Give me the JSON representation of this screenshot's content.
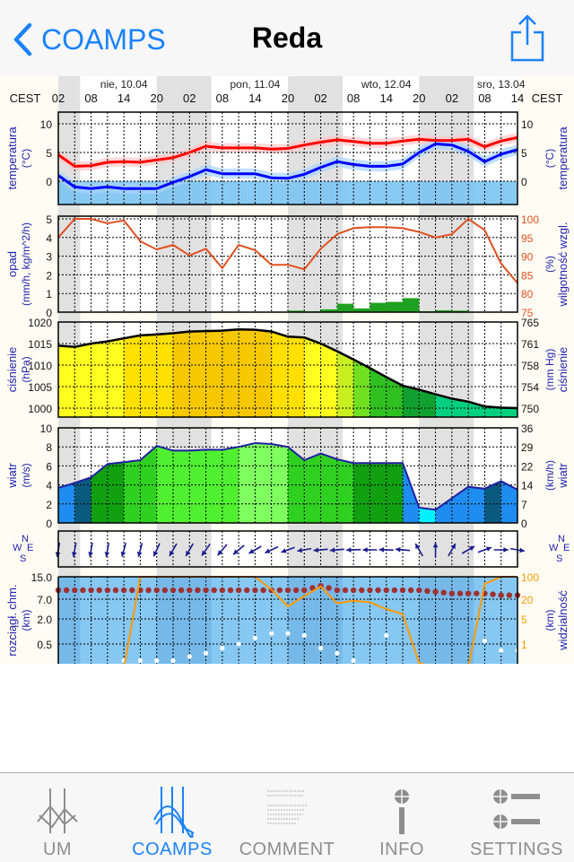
{
  "navbar": {
    "back_label": "COAMPS",
    "title": "Reda",
    "share_icon": "share-icon"
  },
  "tabs": [
    {
      "label": "UM",
      "icon": "um-chart-icon",
      "active": false
    },
    {
      "label": "COAMPS",
      "icon": "coamps-chart-icon",
      "active": true
    },
    {
      "label": "COMMENT",
      "icon": "comment-text-icon",
      "active": false
    },
    {
      "label": "INFO",
      "icon": "info-icon",
      "active": false
    },
    {
      "label": "SETTINGS",
      "icon": "settings-icon",
      "active": false
    }
  ],
  "colors": {
    "accent": "#1a82fb",
    "inactive": "#8e8e8e",
    "axis_label": "#2020b0",
    "rh_axis": "#e05020",
    "vis_axis": "#ff9900"
  },
  "meteogram": {
    "timezone_label": "CEST",
    "dates": [
      {
        "label": "nie, 10.04",
        "time": "10.04 14:00"
      },
      {
        "label": "pon, 11.04",
        "time": "11.04 14:00"
      },
      {
        "label": "wto, 12.04",
        "time": "12.04 14:00"
      },
      {
        "label": "sro, 13.04",
        "time": "13.04 11:00"
      }
    ],
    "hour_labels": [
      "02",
      "08",
      "14",
      "20",
      "02",
      "08",
      "14",
      "20",
      "02",
      "08",
      "14",
      "20",
      "02",
      "08",
      "14"
    ],
    "night_periods": [
      [
        "10.04 02:00",
        "10.04 06:00"
      ],
      [
        "10.04 20:00",
        "11.04 06:00"
      ],
      [
        "11.04 20:00",
        "12.04 06:00"
      ],
      [
        "12.04 20:00",
        "13.04 06:00"
      ]
    ],
    "panels": {
      "temperature": {
        "left_label": "temperatura",
        "left_unit": "(°C)",
        "right_label": "temperatura",
        "right_unit": "(°C)",
        "ticks": [
          "10",
          "5",
          "0"
        ]
      },
      "precip": {
        "left_label": "opad",
        "left_unit": "(mm/h, kg/m^2/h)",
        "right_label": "wilgotność wzgl.",
        "right_unit": "(%)",
        "ticks_left": [
          "5",
          "4",
          "3",
          "2",
          "1",
          "0"
        ],
        "ticks_right": [
          "100",
          "95",
          "90",
          "85",
          "80",
          "75"
        ]
      },
      "pressure": {
        "left_label": "ciśnienie",
        "left_unit": "(hPa)",
        "right_label": "ciśnienie",
        "right_unit": "(mm Hg)",
        "ticks_left": [
          "1020",
          "1015",
          "1010",
          "1005",
          "1000"
        ],
        "ticks_right": [
          "765",
          "761",
          "758",
          "754",
          "750"
        ]
      },
      "wind": {
        "left_label": "wiatr",
        "left_unit": "(m/s)",
        "right_label": "wiatr",
        "right_unit": "(km/h)",
        "ticks_left": [
          "10",
          "8",
          "6",
          "4",
          "2",
          "0"
        ],
        "ticks_right": [
          "36",
          "29",
          "22",
          "14",
          "7",
          "0"
        ]
      },
      "direction": {
        "compass": [
          "N",
          "W",
          "E",
          "S"
        ]
      },
      "clouds": {
        "left_label": "rozciągł. chm.",
        "left_unit": "(km)",
        "right_label": "widzialność",
        "right_unit": "(km)",
        "ticks_left": [
          "15.0",
          "7.0",
          "2.0",
          "0.5"
        ],
        "ticks_right": [
          "100",
          "20",
          "5",
          "1"
        ]
      }
    }
  },
  "chart_data": {
    "type": "line",
    "times": [
      "10.04 02:00",
      "10.04 05:00",
      "10.04 08:00",
      "10.04 11:00",
      "10.04 14:00",
      "10.04 17:00",
      "10.04 20:00",
      "10.04 23:00",
      "11.04 02:00",
      "11.04 05:00",
      "11.04 08:00",
      "11.04 11:00",
      "11.04 14:00",
      "11.04 17:00",
      "11.04 20:00",
      "11.04 23:00",
      "12.04 02:00",
      "12.04 05:00",
      "12.04 08:00",
      "12.04 11:00",
      "12.04 14:00",
      "12.04 17:00",
      "12.04 20:00",
      "12.04 23:00",
      "13.04 02:00",
      "13.04 05:00",
      "13.04 08:00",
      "13.04 11:00",
      "13.04 14:00"
    ],
    "series": [
      {
        "key": "temperature_red",
        "unit": "°C",
        "color": "#ff0000",
        "values": [
          4.6,
          2.6,
          2.7,
          3.3,
          3.4,
          3.3,
          3.7,
          4.1,
          5.0,
          6.1,
          5.8,
          5.8,
          5.8,
          5.6,
          5.7,
          6.3,
          6.8,
          7.2,
          6.9,
          6.6,
          6.6,
          7.0,
          7.3,
          7.1,
          7.1,
          7.3,
          6.0,
          7.0,
          7.6
        ]
      },
      {
        "key": "temperature_blue",
        "unit": "°C",
        "color": "#0000ff",
        "values": [
          1.0,
          -1.0,
          -1.3,
          -1.0,
          -1.3,
          -1.3,
          -1.3,
          -0.2,
          0.8,
          2.0,
          1.3,
          1.3,
          1.3,
          0.6,
          0.5,
          1.2,
          2.4,
          3.4,
          2.9,
          2.6,
          2.6,
          3.0,
          5.0,
          6.5,
          6.3,
          5.2,
          3.4,
          4.7,
          5.5
        ]
      },
      {
        "key": "precipitation",
        "unit": "mm/h",
        "color": "#20a020",
        "values": [
          0,
          0,
          0,
          0,
          0,
          0,
          0,
          0,
          0,
          0,
          0,
          0,
          0,
          0,
          0.08,
          0.05,
          0.15,
          0.45,
          0.2,
          0.5,
          0.55,
          0.75,
          0.05,
          0.1,
          0.08,
          0,
          0,
          0,
          0
        ]
      },
      {
        "key": "relative_humidity",
        "unit": "%",
        "color": "#e05020",
        "values": [
          95,
          100,
          100,
          98.8,
          99.6,
          94,
          91.8,
          93,
          90.2,
          92,
          86.8,
          93,
          91.6,
          87.7,
          87.7,
          86.5,
          92,
          95.9,
          97.5,
          97.8,
          97.8,
          97.5,
          96.5,
          95,
          95.9,
          100,
          97,
          88,
          82.8
        ]
      },
      {
        "key": "pressure",
        "unit": "hPa",
        "color": "#000000",
        "values": [
          1014.5,
          1014.2,
          1015,
          1015.5,
          1016.2,
          1016.9,
          1017.1,
          1017.4,
          1017.8,
          1017.9,
          1018,
          1018.3,
          1018.2,
          1017.8,
          1016.6,
          1016.4,
          1015,
          1013.2,
          1011.3,
          1009.3,
          1007.2,
          1005.2,
          1004.3,
          1003.2,
          1002.2,
          1001.5,
          1000.4,
          1000.1,
          1000
        ]
      },
      {
        "key": "wind_speed",
        "unit": "m/s",
        "color": "#2020a0",
        "values": [
          3.7,
          4.2,
          4.8,
          6.2,
          6.4,
          6.6,
          8.1,
          7.6,
          7.6,
          7.7,
          7.7,
          8.0,
          8.4,
          8.3,
          8.0,
          6.6,
          7.3,
          6.7,
          6.3,
          6.3,
          6.3,
          6.3,
          1.6,
          1.4,
          2.6,
          3.8,
          3.6,
          4.4,
          3.5
        ]
      },
      {
        "key": "wind_direction",
        "unit": "deg",
        "color": "#1a1a90",
        "values": [
          10,
          10,
          10,
          10,
          15,
          15,
          25,
          30,
          30,
          35,
          40,
          50,
          60,
          65,
          70,
          80,
          85,
          85,
          88,
          90,
          92,
          95,
          150,
          180,
          210,
          240,
          250,
          270,
          280
        ]
      },
      {
        "key": "cloud_top",
        "unit": "km",
        "color": "#a03030",
        "values": [
          9.5,
          9.5,
          9.5,
          9.5,
          9.5,
          9.5,
          9.5,
          9.5,
          9.5,
          9.5,
          9.5,
          9.5,
          9.5,
          9.5,
          9.5,
          9.5,
          11,
          9.5,
          9.5,
          9.5,
          9.5,
          9.5,
          9.5,
          9,
          8.5,
          8.5,
          8.5,
          8,
          8
        ]
      },
      {
        "key": "cloud_base",
        "unit": "km",
        "color": "#ffffff",
        "values": [
          null,
          null,
          null,
          null,
          0.2,
          0.2,
          0.2,
          0.2,
          0.25,
          0.3,
          0.4,
          0.5,
          0.7,
          0.9,
          0.9,
          0.8,
          0.4,
          0.3,
          0.2,
          null,
          0.8,
          null,
          null,
          null,
          null,
          null,
          0.6,
          0.35,
          0.35
        ]
      },
      {
        "key": "visibility",
        "unit": "km",
        "color": "#ff9900",
        "values": [
          0.2,
          0.2,
          0.2,
          0.2,
          0.2,
          100,
          100,
          100,
          100,
          100,
          100,
          100,
          100,
          40,
          12,
          25,
          50,
          15,
          18,
          16,
          10,
          7,
          0.3,
          0.2,
          0.2,
          0.2,
          60,
          100,
          100
        ]
      }
    ]
  }
}
